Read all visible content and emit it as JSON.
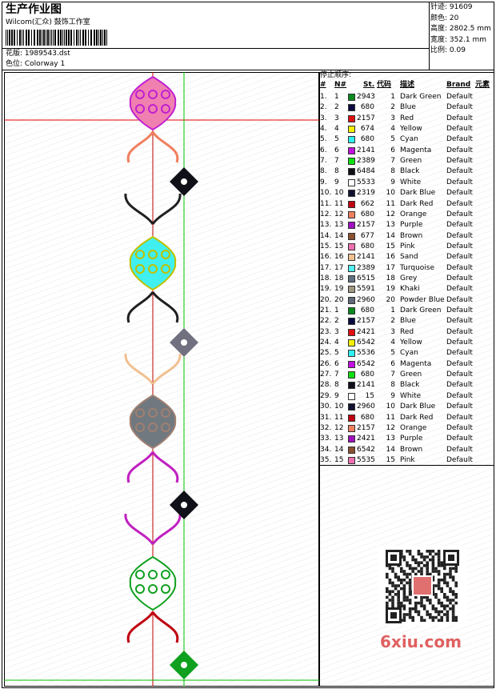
{
  "header": {
    "title": "生产作业图",
    "studio": "Wilcom(汇众) 鼓饰工作室",
    "design": "花版: 1989543.dst",
    "colorway": "色位: Colorway 1"
  },
  "stats": [
    "针迹: 91609",
    "颜色: 20",
    "高度: 2802.5 mm",
    "宽度: 352.1 mm",
    "比例: 0.09"
  ],
  "table": {
    "title": "停止顺序:",
    "columns": [
      "#",
      "N#",
      "St.",
      "代码",
      "描述",
      "Brand",
      "元素"
    ],
    "rows": [
      [
        "1.",
        "1",
        "#0a8a1e",
        "2943",
        "1",
        "Dark Green",
        "Default"
      ],
      [
        "2.",
        "2",
        "#0a0a40",
        "680",
        "2",
        "Blue",
        "Default"
      ],
      [
        "3.",
        "3",
        "#e01010",
        "2157",
        "3",
        "Red",
        "Default"
      ],
      [
        "4.",
        "4",
        "#f5f000",
        "674",
        "4",
        "Yellow",
        "Default"
      ],
      [
        "5.",
        "5",
        "#30f0f0",
        "680",
        "5",
        "Cyan",
        "Default"
      ],
      [
        "6.",
        "6",
        "#c010e0",
        "2141",
        "6",
        "Magenta",
        "Default"
      ],
      [
        "7.",
        "7",
        "#10e010",
        "2389",
        "7",
        "Green",
        "Default"
      ],
      [
        "8.",
        "8",
        "#101018",
        "6484",
        "8",
        "Black",
        "Default"
      ],
      [
        "9.",
        "9",
        "#ffffff",
        "5533",
        "9",
        "White",
        "Default"
      ],
      [
        "10.",
        "10",
        "#101030",
        "2319",
        "10",
        "Dark Blue",
        "Default"
      ],
      [
        "11.",
        "11",
        "#c00010",
        "662",
        "11",
        "Dark Red",
        "Default"
      ],
      [
        "12.",
        "12",
        "#f08060",
        "680",
        "12",
        "Orange",
        "Default"
      ],
      [
        "13.",
        "13",
        "#a010c0",
        "2157",
        "13",
        "Purple",
        "Default"
      ],
      [
        "14.",
        "14",
        "#8a5030",
        "677",
        "14",
        "Brown",
        "Default"
      ],
      [
        "15.",
        "15",
        "#f070b0",
        "680",
        "15",
        "Pink",
        "Default"
      ],
      [
        "16.",
        "16",
        "#f0c090",
        "2141",
        "16",
        "Sand",
        "Default"
      ],
      [
        "17.",
        "17",
        "#50f0f0",
        "2389",
        "17",
        "Turquoise",
        "Default"
      ],
      [
        "18.",
        "18",
        "#607080",
        "6515",
        "18",
        "Grey",
        "Default"
      ],
      [
        "19.",
        "19",
        "#a09880",
        "5591",
        "19",
        "Khaki",
        "Default"
      ],
      [
        "20.",
        "20",
        "#606878",
        "2960",
        "20",
        "Powder Blue",
        "Default"
      ],
      [
        "21.",
        "1",
        "#0a8a1e",
        "680",
        "1",
        "Dark Green",
        "Default"
      ],
      [
        "22.",
        "2",
        "#0a0a40",
        "2157",
        "2",
        "Blue",
        "Default"
      ],
      [
        "23.",
        "3",
        "#e01010",
        "2421",
        "3",
        "Red",
        "Default"
      ],
      [
        "24.",
        "4",
        "#f5f000",
        "6542",
        "4",
        "Yellow",
        "Default"
      ],
      [
        "25.",
        "5",
        "#30f0f0",
        "5536",
        "5",
        "Cyan",
        "Default"
      ],
      [
        "26.",
        "6",
        "#c010e0",
        "6542",
        "6",
        "Magenta",
        "Default"
      ],
      [
        "27.",
        "7",
        "#10e010",
        "680",
        "7",
        "Green",
        "Default"
      ],
      [
        "28.",
        "8",
        "#101018",
        "2141",
        "8",
        "Black",
        "Default"
      ],
      [
        "29.",
        "9",
        "#ffffff",
        "15",
        "9",
        "White",
        "Default"
      ],
      [
        "30.",
        "10",
        "#101030",
        "2960",
        "10",
        "Dark Blue",
        "Default"
      ],
      [
        "31.",
        "11",
        "#c00010",
        "680",
        "11",
        "Dark Red",
        "Default"
      ],
      [
        "32.",
        "12",
        "#f08060",
        "2157",
        "12",
        "Orange",
        "Default"
      ],
      [
        "33.",
        "13",
        "#a010c0",
        "2421",
        "13",
        "Purple",
        "Default"
      ],
      [
        "34.",
        "14",
        "#8a5030",
        "6542",
        "14",
        "Brown",
        "Default"
      ],
      [
        "35.",
        "15",
        "#f070b0",
        "5535",
        "15",
        "Pink",
        "Default"
      ]
    ]
  },
  "watermark": "6xiu.com"
}
